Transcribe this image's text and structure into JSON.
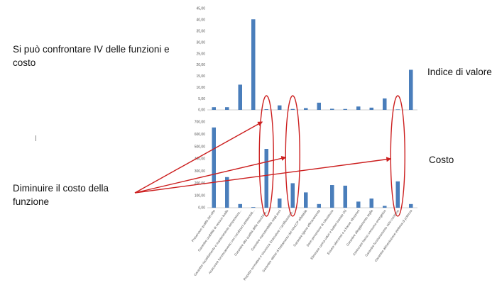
{
  "slide": {
    "main_text": "Si può confrontare IV delle funzioni e costo",
    "reduce_text": "Diminuire il costo della funzione",
    "index_label": "Indice di valore",
    "cost_label": "Costo"
  },
  "colors": {
    "bar": "#4a7ebb",
    "annotation": "#cc1f1f",
    "axis": "#bfbfbf"
  },
  "chart_data": [
    {
      "type": "bar",
      "ylim": [
        0,
        45
      ],
      "yticks": [
        "0,00",
        "5,00",
        "10,00",
        "15,00",
        "20,00",
        "25,00",
        "30,00",
        "35,00",
        "40,00",
        "45,00"
      ],
      "values": [
        1.2,
        1.2,
        11.2,
        40.2,
        0.3,
        2.0,
        0.4,
        0.8,
        3.2,
        0.5,
        0.4,
        1.5,
        1.0,
        5.1,
        0.2,
        17.8
      ]
    },
    {
      "type": "bar",
      "ylim": [
        0,
        700
      ],
      "yticks": [
        "0,00",
        "100,00",
        "200,00",
        "300,00",
        "400,00",
        "500,00",
        "600,00",
        "700,00"
      ],
      "categories": [
        "Preservare qualità del cibo",
        "Garantire usabilità di nessun livello",
        "Garantire riscaldamento e mantenimento temperatura...",
        "Assicurare funzionamento con condizioni ambientali...",
        "Garantire alta qualità della macchina...",
        "Garantire manutenibilità negli anni",
        "Rispetto normative e sicurezza (marcature / certificazioni)...",
        "Garantire ottime di trattamento del HACCP affidabile",
        "Garantire igiene efficacemente",
        "Dare percezione di robustezza",
        "Eliminare carica odori e batteri tramite O3",
        "Essere silenziosi e a basse vibrazioni",
        "Garantire alloggiamento teglia",
        "Assicurare basso consumo energetico",
        "Garantire funzionamento ciclo continuo",
        "Garantire alimentazione elettrica di potenza"
      ],
      "values": [
        655,
        250,
        30,
        5,
        480,
        75,
        200,
        125,
        30,
        185,
        180,
        50,
        75,
        15,
        215,
        30
      ]
    }
  ]
}
